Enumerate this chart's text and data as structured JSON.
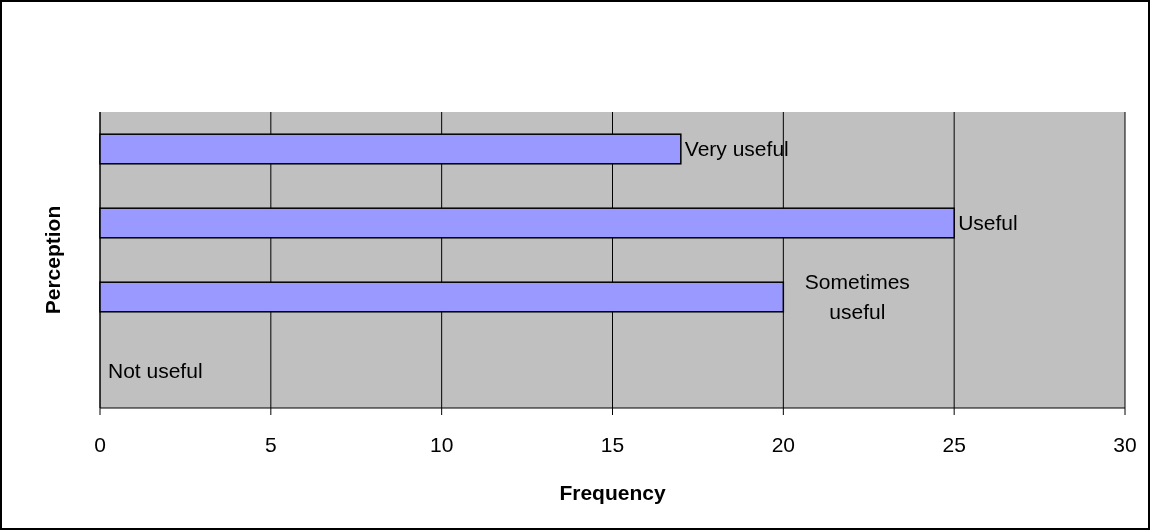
{
  "chart_data": {
    "type": "bar",
    "orientation": "horizontal",
    "categories": [
      "Very useful",
      "Useful",
      "Sometimes useful",
      "Not useful"
    ],
    "values": [
      17,
      25,
      20,
      0
    ],
    "color": "#9999ff",
    "xlim": [
      0,
      30
    ],
    "xticks": [
      0,
      5,
      10,
      15,
      20,
      25,
      30
    ],
    "xlabel": "Frequency",
    "ylabel": "Perception",
    "grid": "x",
    "tick_labels": "x"
  }
}
